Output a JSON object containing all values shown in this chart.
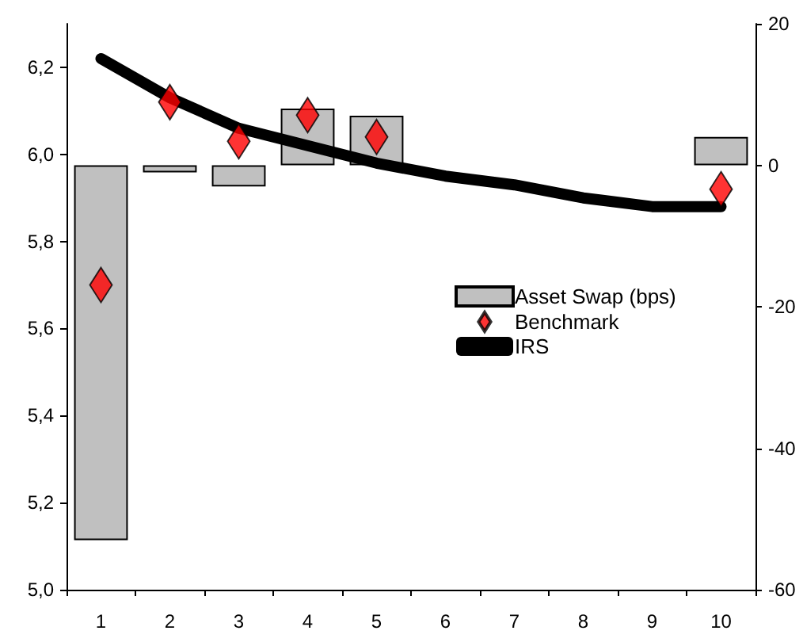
{
  "chart_data": {
    "type": "bar",
    "categories": [
      "1",
      "2",
      "3",
      "4",
      "5",
      "6",
      "7",
      "8",
      "9",
      "10"
    ],
    "series": [
      {
        "name": "Asset Swap (bps)",
        "axis": "y2",
        "color": "#c0c0c0",
        "values": [
          -53,
          -1,
          -3,
          8,
          7,
          null,
          null,
          null,
          null,
          4
        ]
      },
      {
        "name": "Benchmark",
        "type": "scatter",
        "marker": "diamond",
        "color": "#ff0000",
        "values": [
          5.7,
          6.12,
          6.03,
          6.09,
          6.04,
          null,
          null,
          null,
          null,
          5.92
        ]
      },
      {
        "name": "IRS",
        "type": "line",
        "marker": "none",
        "line_style": "solid",
        "color": "#000000",
        "values": [
          6.22,
          6.13,
          6.06,
          6.02,
          5.98,
          5.95,
          5.93,
          5.9,
          5.88,
          5.88
        ]
      }
    ],
    "ylim": [
      5.0,
      6.3
    ],
    "yticks": [
      {
        "value": 5.0,
        "label": "5,0"
      },
      {
        "value": 5.2,
        "label": "5,2"
      },
      {
        "value": 5.4,
        "label": "5,4"
      },
      {
        "value": 5.6,
        "label": "5,6"
      },
      {
        "value": 5.8,
        "label": "5,8"
      },
      {
        "value": 6.0,
        "label": "6,0"
      },
      {
        "value": 6.2,
        "label": "6,2"
      }
    ],
    "y2lim": [
      -60,
      20
    ],
    "y2ticks": [
      -60,
      -40,
      -20,
      0,
      20
    ],
    "grid": false,
    "legend": "right"
  }
}
